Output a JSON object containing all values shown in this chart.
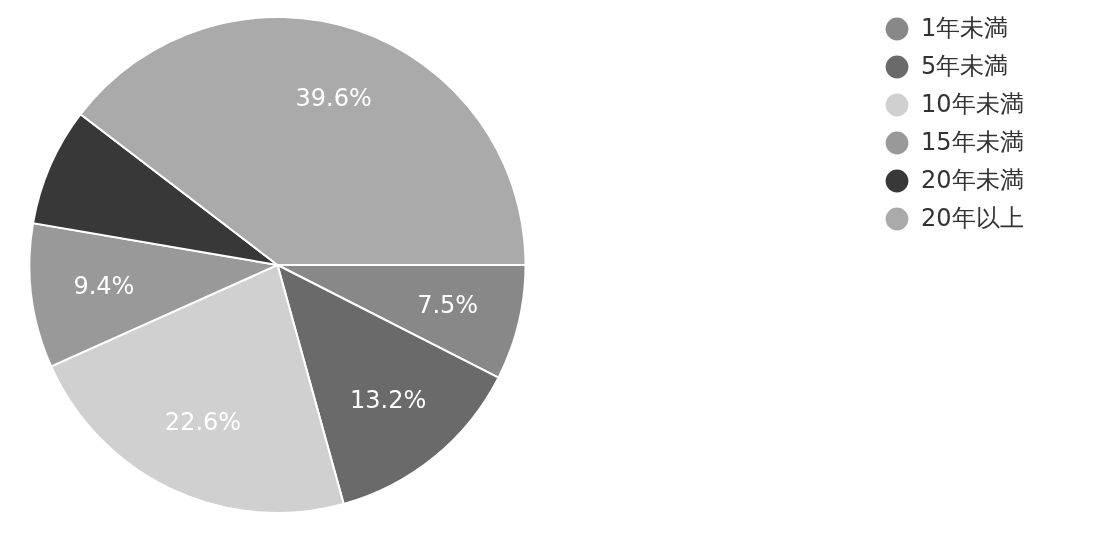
{
  "chart_data": {
    "type": "pie",
    "categories": [
      "1年未満",
      "5年未満",
      "10年未満",
      "15年未満",
      "20年未満",
      "20年以上"
    ],
    "values": [
      7.5,
      13.2,
      22.6,
      9.4,
      7.7,
      39.6
    ],
    "value_labels": [
      "7.5%",
      "13.2%",
      "22.6%",
      "9.4%",
      null,
      "39.6%"
    ],
    "colors": [
      "#888888",
      "#6a6a6a",
      "#d0d0d0",
      "#999999",
      "#383838",
      "#aaaaaa"
    ],
    "legend": "top right"
  }
}
